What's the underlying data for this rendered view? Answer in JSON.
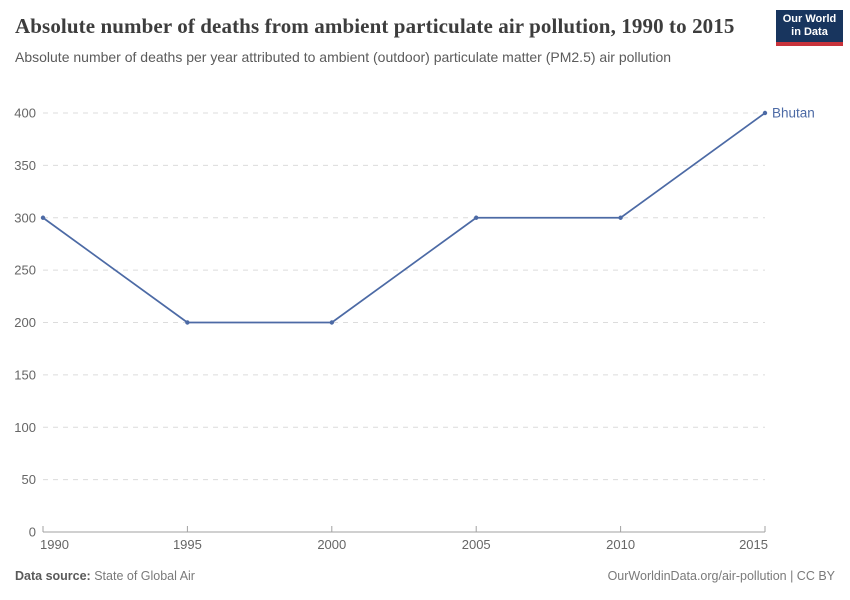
{
  "header": {
    "title": "Absolute number of deaths from ambient particulate air pollution, 1990 to 2015",
    "subtitle": "Absolute number of deaths per year attributed to ambient (outdoor) particulate matter (PM2.5) air pollution"
  },
  "logo": {
    "line1": "Our World",
    "line2": "in Data",
    "bg_color": "#18355e",
    "stripe_color": "#c8333b"
  },
  "chart_data": {
    "type": "line",
    "title": "Absolute number of deaths from ambient particulate air pollution, 1990 to 2015",
    "x": [
      1990,
      1995,
      2000,
      2005,
      2010,
      2015
    ],
    "series": [
      {
        "name": "Bhutan",
        "values": [
          300,
          200,
          200,
          300,
          300,
          400
        ],
        "color": "#4c6aa5"
      }
    ],
    "xlabel": "",
    "ylabel": "",
    "ylim": [
      0,
      400
    ],
    "yticks": [
      0,
      50,
      100,
      150,
      200,
      250,
      300,
      350,
      400
    ],
    "xticks": [
      1990,
      1995,
      2000,
      2005,
      2010,
      2015
    ],
    "grid": "horizontal-dashed",
    "legend_position": "end-of-line-label",
    "colors": {
      "grid": "#dcdcdc",
      "axis": "#a1a1a1",
      "tick_text": "#666666",
      "series_label": "#4c6aa5"
    }
  },
  "footer": {
    "source_label": "Data source:",
    "source_value": "State of Global Air",
    "link": "OurWorldinData.org/air-pollution | CC BY"
  }
}
